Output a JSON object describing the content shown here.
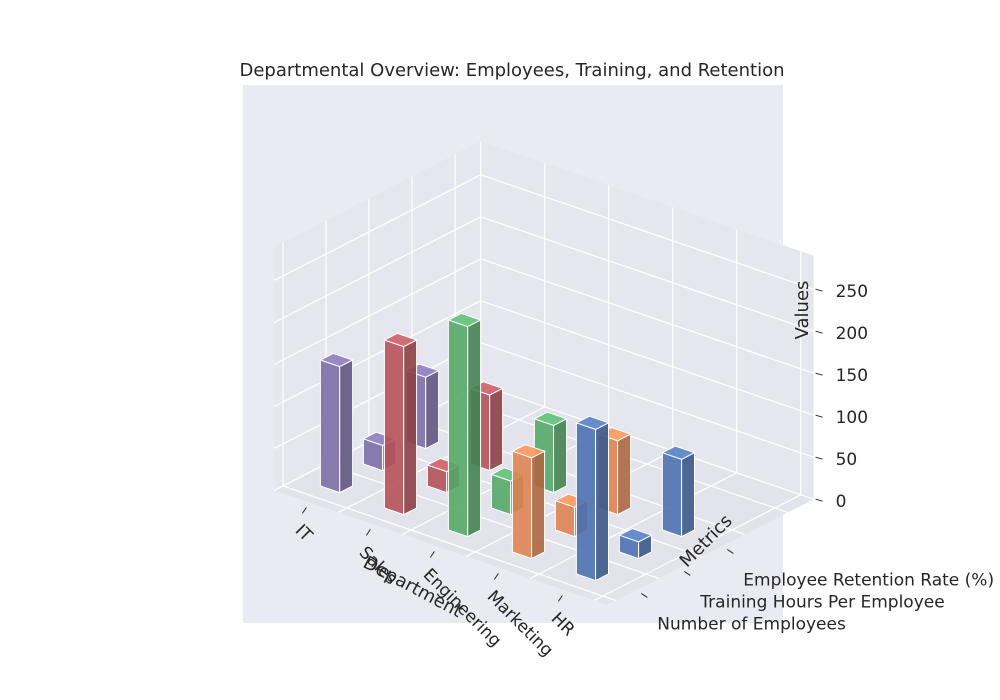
{
  "chart_data": {
    "type": "bar",
    "variant": "3d-bar",
    "title": "Departmental Overview: Employees, Training, and Retention",
    "xlabel": "Department",
    "ylabel": "Metrics",
    "zlabel": "Values",
    "categories": [
      "IT",
      "Sales",
      "Engineering",
      "Marketing",
      "HR"
    ],
    "metrics": [
      "Number of Employees",
      "Training Hours Per Employee",
      "Employee Retention Rate (%)"
    ],
    "series": [
      {
        "name": "Number of Employees",
        "values": [
          150,
          200,
          250,
          120,
          180
        ]
      },
      {
        "name": "Training Hours Per Employee",
        "values": [
          30,
          25,
          40,
          35,
          20
        ]
      },
      {
        "name": "Employee Retention Rate (%)",
        "values": [
          85,
          90,
          80,
          88,
          92
        ]
      }
    ],
    "zticks": [
      0,
      50,
      100,
      150,
      200,
      250
    ],
    "zlim": [
      0,
      250
    ],
    "colors": [
      "#7b6fa6",
      "#b5525a",
      "#55a868",
      "#dd8452",
      "#4c72b0"
    ],
    "background": "#eaeaf2",
    "grid": true
  }
}
